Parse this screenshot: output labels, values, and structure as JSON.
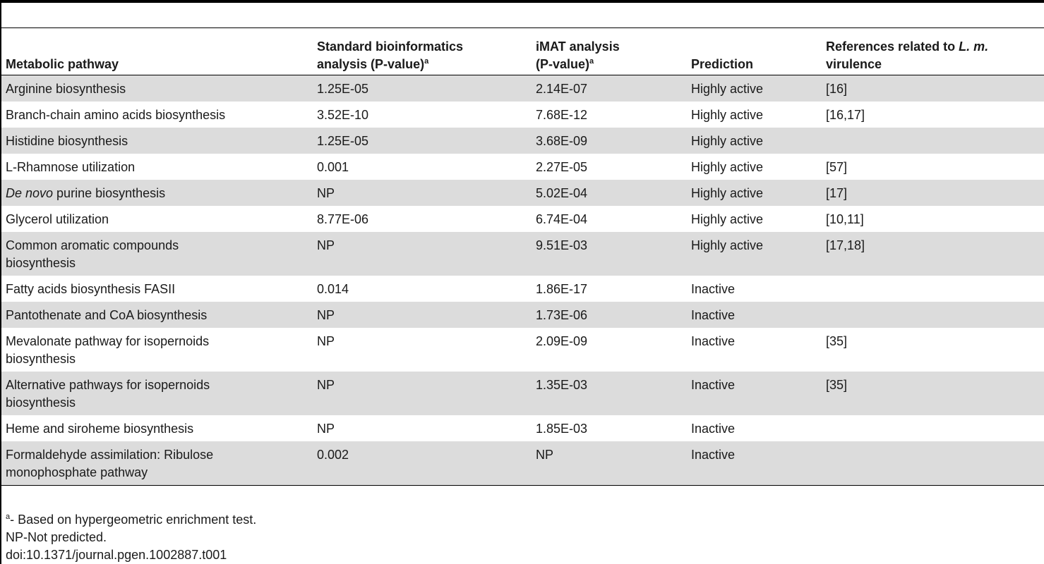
{
  "table": {
    "headers": {
      "pathway": "Metabolic pathway",
      "standard_line1": "Standard bioinformatics",
      "standard_line2": "analysis (P-value)",
      "standard_sup": "a",
      "imat_line1": "iMAT analysis",
      "imat_line2": "(P-value)",
      "imat_sup": "a",
      "prediction": "Prediction",
      "references_pre": "References related to ",
      "references_italic": "L. m.",
      "references_post": "virulence"
    },
    "rows": [
      {
        "pathway_italic": "",
        "pathway": "Arginine biosynthesis",
        "standard": "1.25E-05",
        "imat": "2.14E-07",
        "prediction": "Highly active",
        "references": "[16]"
      },
      {
        "pathway_italic": "",
        "pathway": "Branch-chain amino acids biosynthesis",
        "standard": "3.52E-10",
        "imat": "7.68E-12",
        "prediction": "Highly active",
        "references": "[16,17]"
      },
      {
        "pathway_italic": "",
        "pathway": "Histidine biosynthesis",
        "standard": "1.25E-05",
        "imat": "3.68E-09",
        "prediction": "Highly active",
        "references": ""
      },
      {
        "pathway_italic": "",
        "pathway": "L-Rhamnose utilization",
        "standard": "0.001",
        "imat": "2.27E-05",
        "prediction": "Highly active",
        "references": "[57]"
      },
      {
        "pathway_italic": "De novo",
        "pathway": " purine biosynthesis",
        "standard": "NP",
        "imat": "5.02E-04",
        "prediction": "Highly active",
        "references": "[17]"
      },
      {
        "pathway_italic": "",
        "pathway": "Glycerol utilization",
        "standard": "8.77E-06",
        "imat": "6.74E-04",
        "prediction": "Highly active",
        "references": "[10,11]"
      },
      {
        "pathway_italic": "",
        "pathway_line1": "Common aromatic compounds",
        "pathway_line2": "biosynthesis",
        "standard": "NP",
        "imat": "9.51E-03",
        "prediction": "Highly active",
        "references": "[17,18]"
      },
      {
        "pathway_italic": "",
        "pathway": "Fatty acids biosynthesis FASII",
        "standard": "0.014",
        "imat": "1.86E-17",
        "prediction": "Inactive",
        "references": ""
      },
      {
        "pathway_italic": "",
        "pathway": "Pantothenate and CoA biosynthesis",
        "standard": "NP",
        "imat": "1.73E-06",
        "prediction": "Inactive",
        "references": ""
      },
      {
        "pathway_italic": "",
        "pathway_line1": "Mevalonate pathway for isopernoids",
        "pathway_line2": "biosynthesis",
        "standard": "NP",
        "imat": "2.09E-09",
        "prediction": "Inactive",
        "references": "[35]"
      },
      {
        "pathway_italic": "",
        "pathway_line1": "Alternative pathways for isopernoids",
        "pathway_line2": "biosynthesis",
        "standard": "NP",
        "imat": "1.35E-03",
        "prediction": "Inactive",
        "references": "[35]"
      },
      {
        "pathway_italic": "",
        "pathway": "Heme and siroheme biosynthesis",
        "standard": "NP",
        "imat": "1.85E-03",
        "prediction": "Inactive",
        "references": ""
      },
      {
        "pathway_italic": "",
        "pathway_line1": "Formaldehyde assimilation: Ribulose",
        "pathway_line2": "monophosphate pathway",
        "standard": "0.002",
        "imat": "NP",
        "prediction": "Inactive",
        "references": ""
      }
    ]
  },
  "footnotes": {
    "note_a_sup": "a",
    "note_a_text": "- Based on hypergeometric enrichment test.",
    "note_np": "NP-Not predicted.",
    "doi": "doi:10.1371/journal.pgen.1002887.t001"
  }
}
